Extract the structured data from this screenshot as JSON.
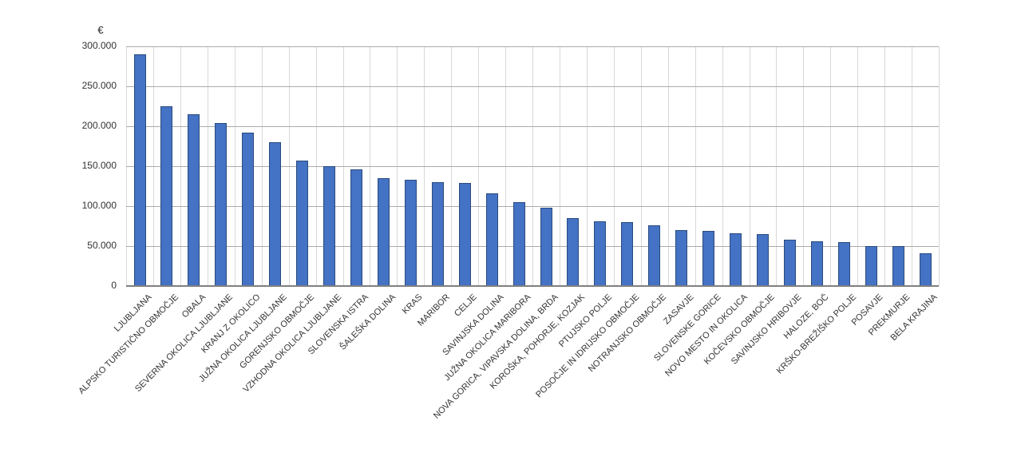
{
  "chart_data": {
    "type": "bar",
    "title": "",
    "unit_label": "€",
    "xlabel": "",
    "ylabel": "€",
    "ylim": [
      0,
      300000
    ],
    "grid": "both",
    "legend": "none",
    "y_ticks": [
      {
        "value": 300000,
        "label": "300.000"
      },
      {
        "value": 250000,
        "label": "250.000"
      },
      {
        "value": 200000,
        "label": "200.000"
      },
      {
        "value": 150000,
        "label": "150.000"
      },
      {
        "value": 100000,
        "label": "100.000"
      },
      {
        "value": 50000,
        "label": "50.000"
      },
      {
        "value": 0,
        "label": "0"
      }
    ],
    "categories": [
      "LJUBLJANA",
      "ALPSKO TURISTIČNO OBMOČJE",
      "OBALA",
      "SEVERNA OKOLICA LJUBLJANE",
      "KRANJ Z OKOLICO",
      "JUŽNA OKOLICA LJUBLJANE",
      "GORENJSKO OBMOČJE",
      "VZHODNA OKOLICA LJUBLJANE",
      "SLOVENSKA ISTRA",
      "ŠALEŠKA DOLINA",
      "KRAS",
      "MARIBOR",
      "CELJE",
      "SAVINJSKA DOLINA",
      "JUŽNA OKOLICA MARIBORA",
      "NOVA GORICA, VIPAVSKA DOLINA, BRDA",
      "KOROŠKA, POHORJE, KOZJAK",
      "PTUJSKO POLJE",
      "POSOČJE IN IDRIJSKO OBMOČJE",
      "NOTRANJSKO OBMOČJE",
      "ZASAVJE",
      "SLOVENSKE GORICE",
      "NOVO MESTO IN OKOLICA",
      "KOČEVSKO OBMOČJE",
      "SAVINJSKO HRIBOVJE",
      "HALOZE, BOČ",
      "KRŠKO-BREŽIŠKO POLJE",
      "POSAVJE",
      "PREKMURJE",
      "BELA KRAJINA"
    ],
    "values": [
      290000,
      225000,
      215000,
      204000,
      192000,
      180000,
      157000,
      150000,
      146000,
      135000,
      133000,
      130000,
      129000,
      116000,
      105000,
      98000,
      85000,
      81000,
      80000,
      76000,
      70000,
      69000,
      66000,
      65000,
      58000,
      56000,
      55000,
      50000,
      50000,
      41000
    ],
    "colors": {
      "bar_fill": "#4472C4",
      "bar_border": "#2B4B7E",
      "h_gridline": "#ABABAB",
      "v_gridline": "#D9D9D9",
      "axis_line": "#808080",
      "text": "#333333"
    }
  }
}
